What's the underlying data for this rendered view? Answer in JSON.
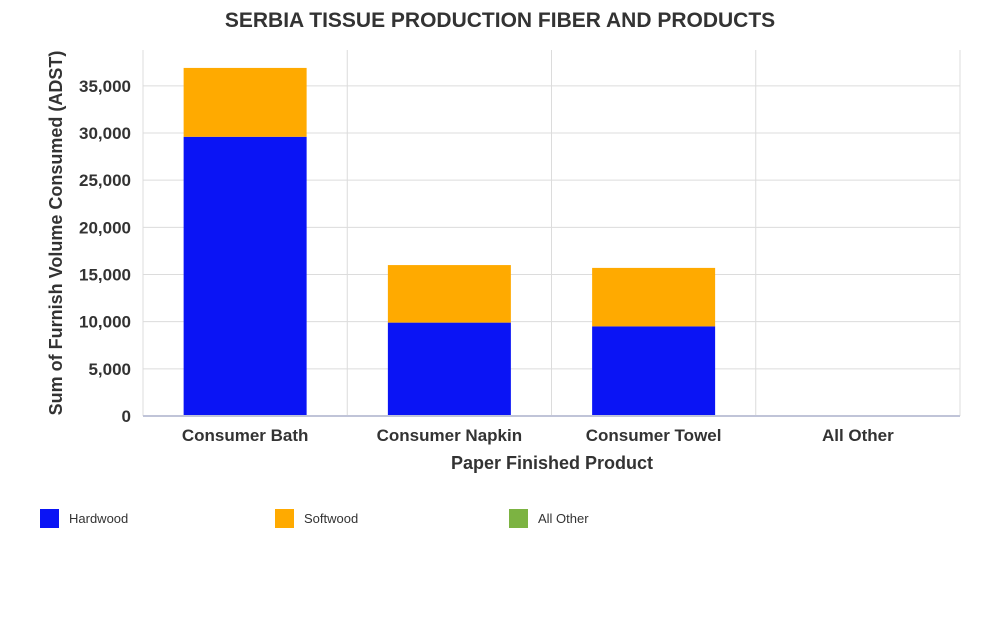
{
  "chart_data": {
    "type": "bar",
    "stacked": true,
    "title": "SERBIA TISSUE PRODUCTION FIBER AND PRODUCTS",
    "xlabel": "Paper Finished Product",
    "ylabel": "Sum of Furnish Volume Consumed (ADST)",
    "categories": [
      "Consumer Bath",
      "Consumer Napkin",
      "Consumer Towel",
      "All Other"
    ],
    "series": [
      {
        "name": "Hardwood",
        "color": "#0a14f5",
        "values": [
          29600,
          9900,
          9500,
          0
        ]
      },
      {
        "name": "Softwood",
        "color": "#ffaa00",
        "values": [
          7300,
          6100,
          6200,
          0
        ]
      },
      {
        "name": "All Other",
        "color": "#7cb342",
        "values": [
          0,
          0,
          0,
          0
        ]
      }
    ],
    "ylim": [
      0,
      38800
    ],
    "yticks": [
      0,
      5000,
      10000,
      15000,
      20000,
      25000,
      30000,
      35000
    ],
    "ytick_labels": [
      "0",
      "5,000",
      "10,000",
      "15,000",
      "20,000",
      "25,000",
      "30,000",
      "35,000"
    ],
    "grid": true,
    "legend_position": "bottom"
  }
}
